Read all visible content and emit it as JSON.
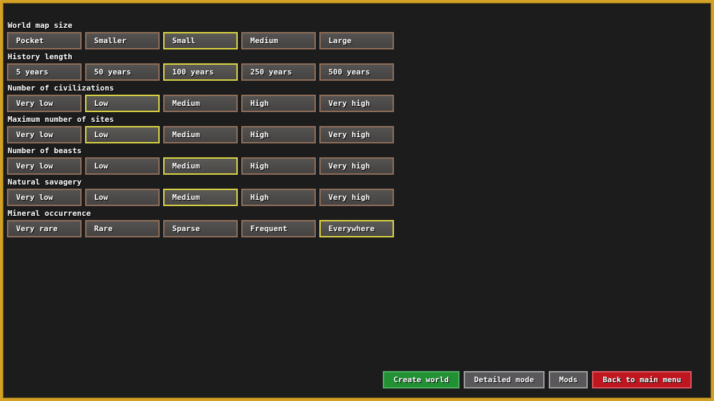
{
  "screen": "world-generation-basic",
  "colors": {
    "frame_gold": "#d2a125",
    "background": "#1c1c1c",
    "option_fill_top": "#555351",
    "option_fill_bottom": "#454342",
    "option_border": "#8f6f5a",
    "selected_border": "#ddd644",
    "create_fill": "#219134",
    "create_border": "#4fae61",
    "neutral_fill": "#59575a",
    "neutral_border": "#9e9e9e",
    "back_fill": "#bf1620",
    "back_border": "#d9545e",
    "text": "#ffffff"
  },
  "groups": [
    {
      "label": "World map size",
      "options": [
        "Pocket",
        "Smaller",
        "Small",
        "Medium",
        "Large"
      ],
      "selected": 2
    },
    {
      "label": "History length",
      "options": [
        "5 years",
        "50 years",
        "100 years",
        "250 years",
        "500 years"
      ],
      "selected": 2
    },
    {
      "label": "Number of civilizations",
      "options": [
        "Very low",
        "Low",
        "Medium",
        "High",
        "Very high"
      ],
      "selected": 1
    },
    {
      "label": "Maximum number of sites",
      "options": [
        "Very low",
        "Low",
        "Medium",
        "High",
        "Very high"
      ],
      "selected": 1
    },
    {
      "label": "Number of beasts",
      "options": [
        "Very low",
        "Low",
        "Medium",
        "High",
        "Very high"
      ],
      "selected": 2
    },
    {
      "label": "Natural savagery",
      "options": [
        "Very low",
        "Low",
        "Medium",
        "High",
        "Very high"
      ],
      "selected": 2
    },
    {
      "label": "Mineral occurrence",
      "options": [
        "Very rare",
        "Rare",
        "Sparse",
        "Frequent",
        "Everywhere"
      ],
      "selected": 4
    }
  ],
  "actions": [
    {
      "label": "Create world",
      "style": "green"
    },
    {
      "label": "Detailed mode",
      "style": "gray"
    },
    {
      "label": "Mods",
      "style": "gray"
    },
    {
      "label": "Back to main menu",
      "style": "red"
    }
  ]
}
